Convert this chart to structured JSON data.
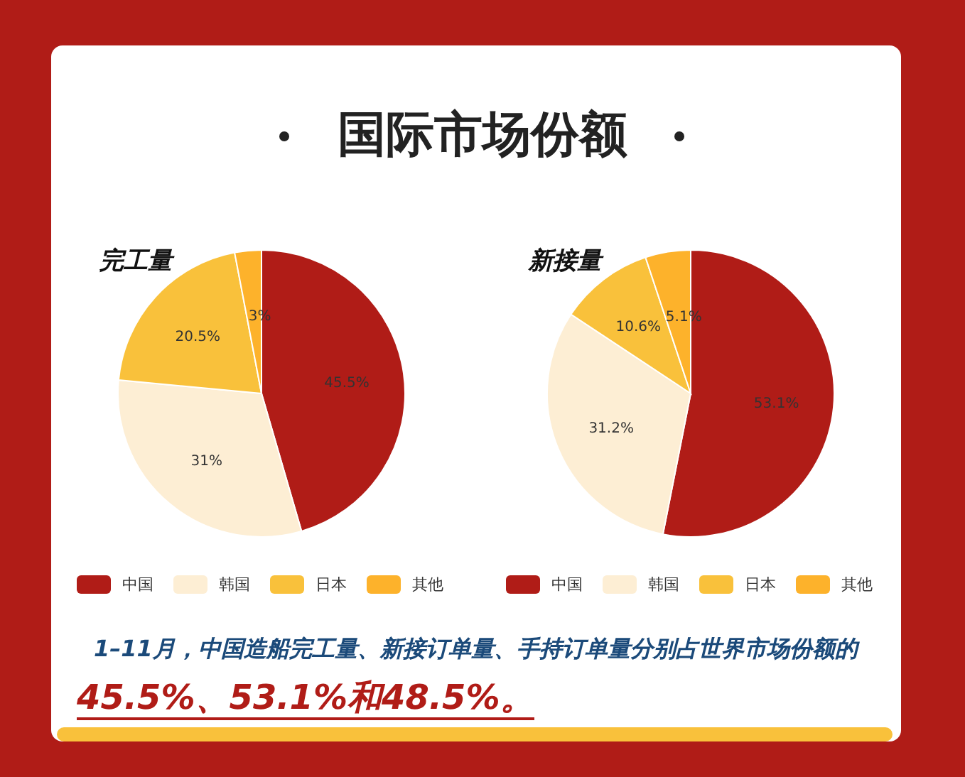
{
  "chart_data": [
    {
      "type": "pie",
      "title": "完工量",
      "categories": [
        "中国",
        "韩国",
        "日本",
        "其他"
      ],
      "values": [
        45.5,
        31,
        20.5,
        3
      ],
      "value_labels": [
        "45.5%",
        "31%",
        "20.5%",
        "3%"
      ],
      "colors": [
        "#b01c17",
        "#fdeed4",
        "#f9c13b",
        "#fdb22b"
      ],
      "legend": "bottom",
      "annotations": [
        "国际市场份额",
        "1–11月，中国造船完工量、新接订单量、手持订单量分别占世界市场份额的",
        "45.5%、53.1%和48.5%。"
      ]
    },
    {
      "type": "pie",
      "title": "新接量",
      "categories": [
        "中国",
        "韩国",
        "日本",
        "其他"
      ],
      "values": [
        53.1,
        31.2,
        10.6,
        5.1
      ],
      "value_labels": [
        "53.1%",
        "31.2%",
        "10.6%",
        "5.1%"
      ],
      "colors": [
        "#b01c17",
        "#fdeed4",
        "#f9c13b",
        "#fdb22b"
      ],
      "legend": "bottom"
    }
  ]
}
